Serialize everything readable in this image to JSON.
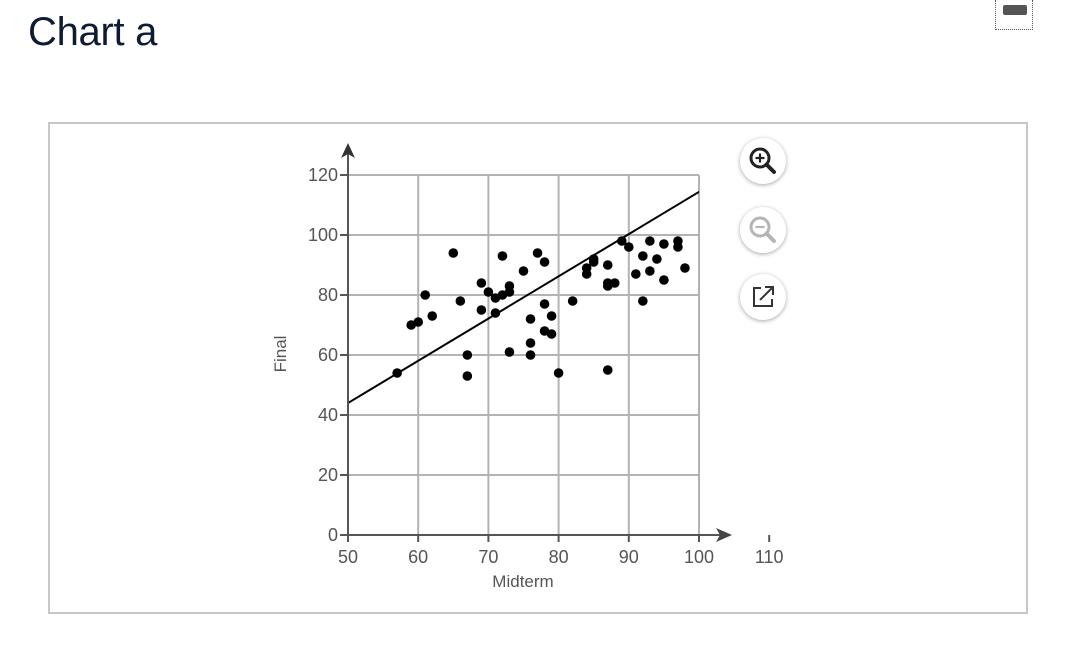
{
  "page": {
    "title": "Chart a"
  },
  "toolbar": {
    "collapse_icon": "minus-icon",
    "zoom_in_icon": "zoom-in-icon",
    "zoom_out_icon": "zoom-out-icon",
    "popout_icon": "external-link-icon"
  },
  "chart_data": {
    "type": "scatter",
    "title": "",
    "xlabel": "Midterm",
    "ylabel": "Final",
    "xlim": [
      50,
      110
    ],
    "ylim": [
      0,
      120
    ],
    "x_ticks": [
      50,
      60,
      70,
      80,
      90,
      100,
      110
    ],
    "y_ticks": [
      0,
      20,
      40,
      60,
      80,
      100,
      120
    ],
    "grid": true,
    "points": [
      [
        57,
        54
      ],
      [
        59,
        70
      ],
      [
        60,
        71
      ],
      [
        61,
        80
      ],
      [
        62,
        73
      ],
      [
        65,
        94
      ],
      [
        66,
        78
      ],
      [
        67,
        60
      ],
      [
        67,
        53
      ],
      [
        69,
        75
      ],
      [
        69,
        84
      ],
      [
        70,
        81
      ],
      [
        71,
        79
      ],
      [
        71,
        74
      ],
      [
        72,
        80
      ],
      [
        72,
        93
      ],
      [
        73,
        83
      ],
      [
        73,
        81
      ],
      [
        73,
        61
      ],
      [
        75,
        88
      ],
      [
        76,
        72
      ],
      [
        76,
        64
      ],
      [
        76,
        60
      ],
      [
        77,
        94
      ],
      [
        78,
        91
      ],
      [
        78,
        77
      ],
      [
        78,
        68
      ],
      [
        79,
        67
      ],
      [
        79,
        73
      ],
      [
        80,
        54
      ],
      [
        82,
        78
      ],
      [
        84,
        87
      ],
      [
        84,
        89
      ],
      [
        85,
        92
      ],
      [
        85,
        91
      ],
      [
        87,
        90
      ],
      [
        87,
        83
      ],
      [
        87,
        84
      ],
      [
        87,
        55
      ],
      [
        88,
        84
      ],
      [
        89,
        98
      ],
      [
        90,
        96
      ],
      [
        91,
        87
      ],
      [
        92,
        93
      ],
      [
        92,
        78
      ],
      [
        93,
        98
      ],
      [
        93,
        88
      ],
      [
        94,
        92
      ],
      [
        95,
        97
      ],
      [
        95,
        85
      ],
      [
        97,
        98
      ],
      [
        97,
        96
      ],
      [
        98,
        89
      ]
    ],
    "regression_line": {
      "x": [
        50,
        104
      ],
      "y": [
        44,
        120
      ]
    },
    "colors": {
      "points": "#000000",
      "grid": "#b3b3b3",
      "axis": "#555555"
    }
  }
}
